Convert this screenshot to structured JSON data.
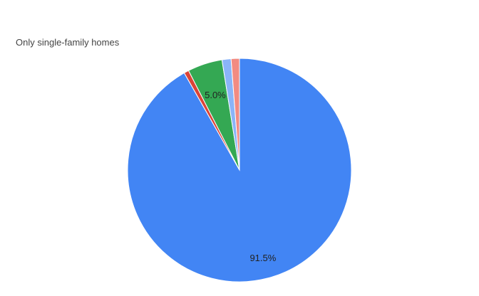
{
  "chart_data": {
    "type": "pie",
    "title": "Only single-family homes",
    "slices": [
      {
        "value": 91.5,
        "label": "91.5%",
        "color": "#4285f4",
        "label_color": "#222222"
      },
      {
        "value": 0.7,
        "label": "",
        "color": "#db4437",
        "label_color": "#222222"
      },
      {
        "value": 5.0,
        "label": "5.0%",
        "color": "#34a853",
        "label_color": "#222222"
      },
      {
        "value": 1.3,
        "label": "",
        "color": "#8ab4f8",
        "label_color": "#222222"
      },
      {
        "value": 1.2,
        "label": "",
        "color": "#f28b82",
        "label_color": "#222222"
      }
    ],
    "start_angle_deg": 0,
    "direction": "clockwise",
    "legend": "none"
  }
}
